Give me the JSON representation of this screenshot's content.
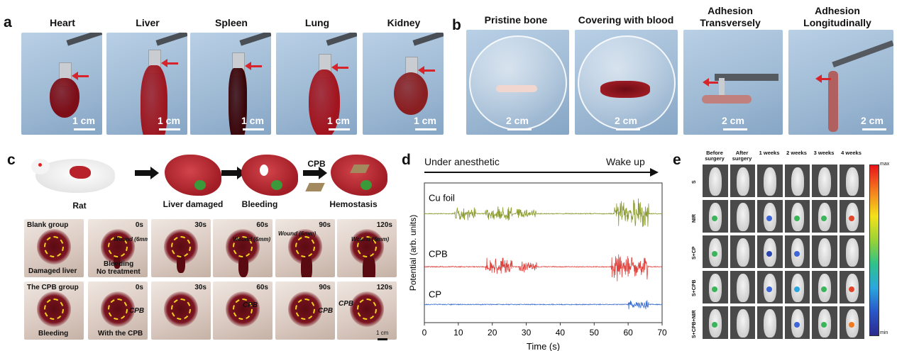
{
  "panel_a": {
    "label": "a",
    "organs": [
      {
        "name": "Heart",
        "scale": "1 cm"
      },
      {
        "name": "Liver",
        "scale": "1 cm"
      },
      {
        "name": "Spleen",
        "scale": "1 cm"
      },
      {
        "name": "Lung",
        "scale": "1 cm"
      },
      {
        "name": "Kidney",
        "scale": "1 cm"
      }
    ]
  },
  "panel_b": {
    "label": "b",
    "photos": [
      {
        "title": "Pristine bone",
        "scale": "2 cm"
      },
      {
        "title": "Covering with blood",
        "scale": "2 cm"
      },
      {
        "title_1": "Adhesion",
        "title_2": "Transversely",
        "scale": "2 cm"
      },
      {
        "title_1": "Adhesion",
        "title_2": "Longitudinally",
        "scale": "2 cm"
      }
    ]
  },
  "panel_c": {
    "label": "c",
    "schematic": {
      "rat": "Rat",
      "liver_damaged": "Liver damaged",
      "bleeding": "Bleeding",
      "cpb": "CPB",
      "hemostasis": "Hemostasis"
    },
    "row1": {
      "group": "Blank group",
      "caption_first": "Damaged liver",
      "caption_second_1": "Bleeding",
      "caption_second_2": "No treatment",
      "times": [
        "0s",
        "30s",
        "60s",
        "90s",
        "120s"
      ],
      "wound": "Wound (6mm)"
    },
    "row2": {
      "group": "The CPB group",
      "caption_first": "Bleeding",
      "caption_second": "With the CPB",
      "times": [
        "0s",
        "30s",
        "60s",
        "90s",
        "120s"
      ],
      "cpb_tag": "CPB"
    },
    "scale": "1 cm"
  },
  "panel_d": {
    "label": "d",
    "left_text": "Under anesthetic",
    "right_text": "Wake up",
    "ylabel": "Potential (arb. units)",
    "xlabel": "Time (s)",
    "series_labels": [
      "Cu foil",
      "CPB",
      "CP"
    ]
  },
  "chart_data": {
    "type": "line",
    "title": "",
    "xlabel": "Time (s)",
    "ylabel": "Potential (arb. units)",
    "xlim": [
      0,
      70
    ],
    "x_ticks": [
      0,
      10,
      20,
      30,
      40,
      50,
      60,
      70
    ],
    "series": [
      {
        "name": "Cu foil",
        "color": "#8a9a2e",
        "baseline": 0.78,
        "bursts": [
          [
            9,
            15,
            0.35
          ],
          [
            18,
            26,
            0.45
          ],
          [
            27,
            33,
            0.3
          ],
          [
            56,
            66,
            1.0
          ]
        ]
      },
      {
        "name": "CPB",
        "color": "#e0443f",
        "baseline": 0.4,
        "bursts": [
          [
            18,
            26,
            0.6
          ],
          [
            28,
            33,
            0.3
          ],
          [
            55,
            66,
            0.9
          ]
        ]
      },
      {
        "name": "CP",
        "color": "#3d6fd0",
        "baseline": 0.13,
        "bursts": [
          [
            60,
            66,
            0.25
          ]
        ]
      }
    ]
  },
  "panel_e": {
    "label": "e",
    "columns": [
      {
        "line1": "Before",
        "line2": "surgery"
      },
      {
        "line1": "After",
        "line2": "surgery"
      },
      {
        "line1": "1 weeks",
        "line2": ""
      },
      {
        "line1": "2 weeks",
        "line2": ""
      },
      {
        "line1": "3 weeks",
        "line2": ""
      },
      {
        "line1": "4 weeks",
        "line2": ""
      }
    ],
    "rows": [
      "S",
      "NIR",
      "S+CP",
      "S+CPB",
      "S+CPB+NIR"
    ],
    "colorbar_max": "max",
    "colorbar_min": "min"
  },
  "colors": {
    "arrow": "#d6242a",
    "dash": "#f2d21b"
  }
}
